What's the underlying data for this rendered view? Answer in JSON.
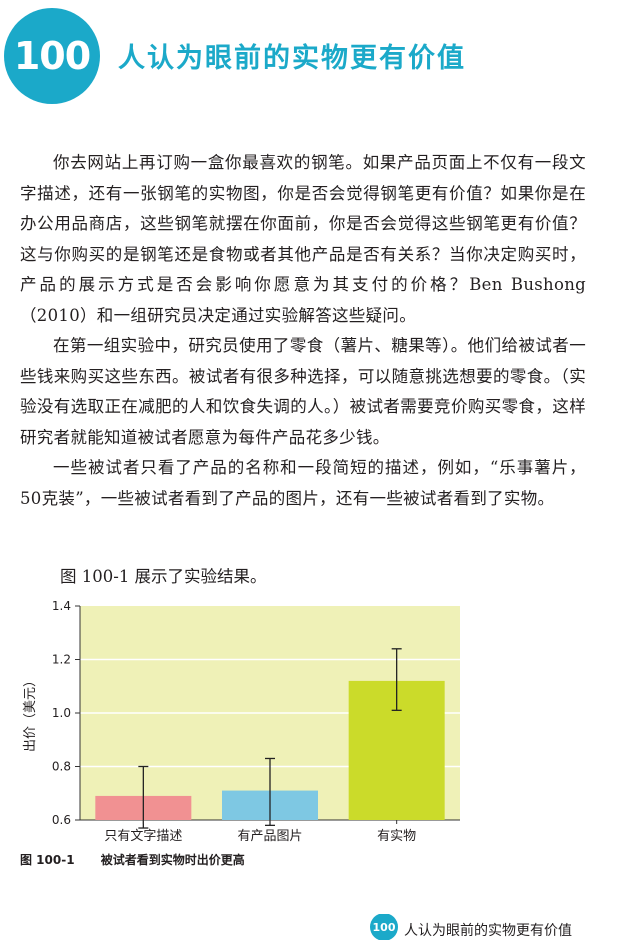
{
  "chapter": {
    "number": "100",
    "title": "人认为眼前的实物更有价值"
  },
  "paragraphs": [
    "你去网站上再订购一盒你最喜欢的钢笔。如果产品页面上不仅有一段文字描述，还有一张钢笔的实物图，你是否会觉得钢笔更有价值？如果你是在办公用品商店，这些钢笔就摆在你面前，你是否会觉得这些钢笔更有价值？这与你购买的是钢笔还是食物或者其他产品是否有关系？当你决定购买时，产品的展示方式是否会影响你愿意为其支付的价格？Ben Bushong（2010）和一组研究员决定通过实验解答这些疑问。",
    "在第一组实验中，研究员使用了零食（薯片、糖果等）。他们给被试者一些钱来购买这些东西。被试者有很多种选择，可以随意挑选想要的零食。（实验没有选取正在减肥的人和饮食失调的人。）被试者需要竞价购买零食，这样研究者就能知道被试者愿意为每件产品花多少钱。",
    "一些被试者只看了产品的名称和一段简短的描述，例如，“乐事薯片，50克装”，一些被试者看到了产品的图片，还有一些被试者看到了实物。"
  ],
  "figure_intro": "图 100-1 展示了实验结果。",
  "chart_data": {
    "type": "bar",
    "categories": [
      "只有文字描述",
      "有产品图片",
      "有实物"
    ],
    "values": [
      0.69,
      0.71,
      1.12
    ],
    "error_bars": [
      [
        0.57,
        0.8
      ],
      [
        0.58,
        0.83
      ],
      [
        1.01,
        1.24
      ]
    ],
    "ylabel": "出价（美元）",
    "ylim": [
      0.6,
      1.4
    ],
    "yticks": [
      "0.6",
      "0.8",
      "1.0",
      "1.2",
      "1.4"
    ],
    "grid": true,
    "colors": {
      "plot_bg": "#eff1b7",
      "grid": "#ffffff",
      "bars": [
        "#f19192",
        "#7ec8e3",
        "#cbdb2a"
      ],
      "error_bar": "#222222"
    }
  },
  "figure_caption": {
    "number": "图 100-1",
    "text": "被试者看到实物时出价更高"
  },
  "footer": {
    "badge": "100",
    "title": "人认为眼前的实物更有价值"
  }
}
